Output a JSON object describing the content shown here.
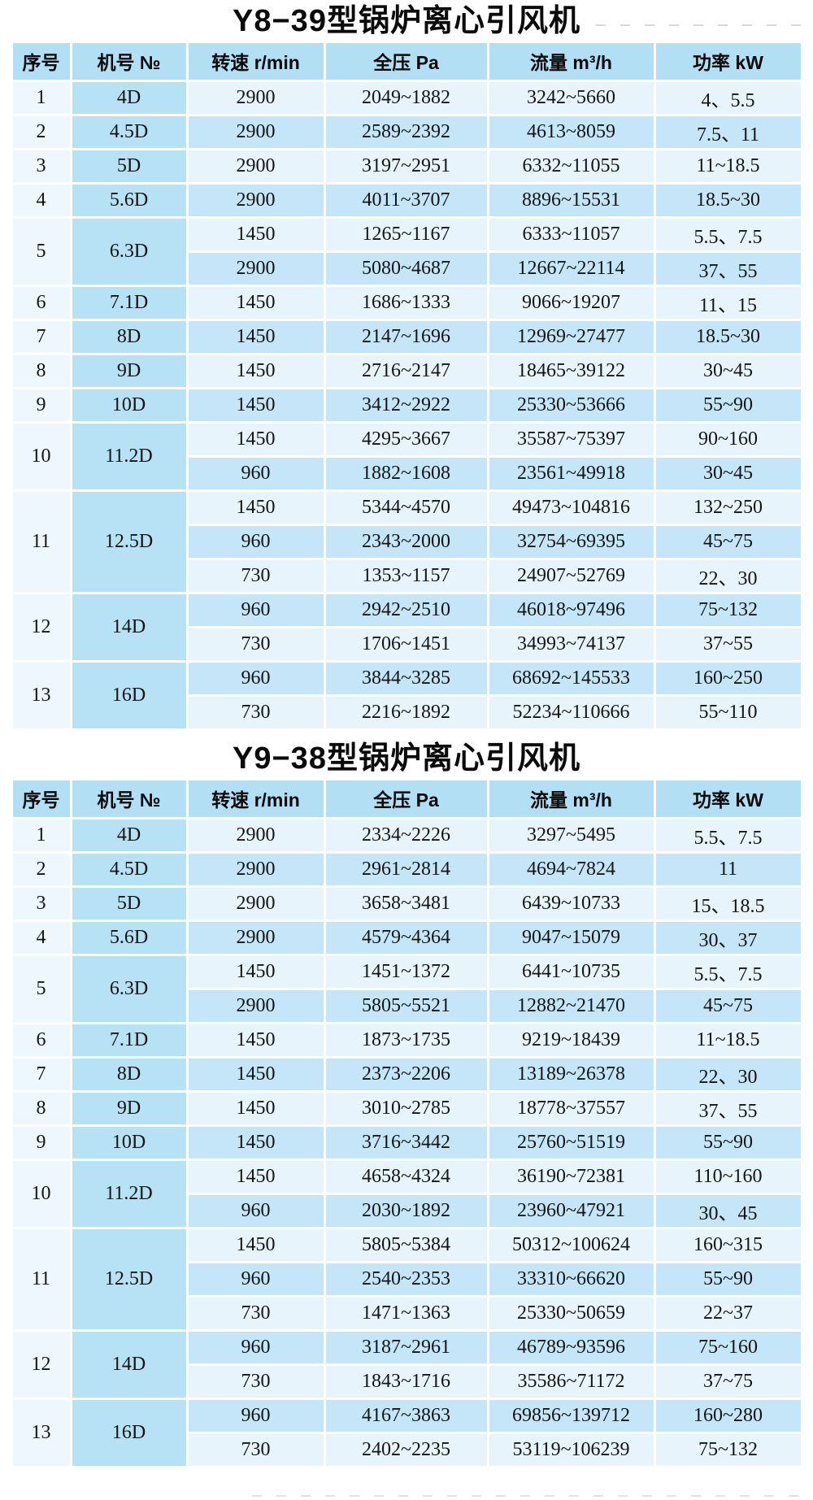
{
  "colors": {
    "header_bg": "#b3dff4",
    "model_column_bg": "#b7e1f5",
    "seq_column_bg": "#edf7fd",
    "row_light_bg": "#e8f4fc",
    "row_medium_bg": "#c4e6f8",
    "page_bg": "#ffffff",
    "text": "#111111"
  },
  "tables": [
    {
      "title": "Y8−39型锅炉离心引风机",
      "headers": [
        "序号",
        "机号 №",
        "转速 r/min",
        "全压 Pa",
        "流量 m³/h",
        "功率 kW"
      ],
      "rows": [
        {
          "seq": "1",
          "model": "4D",
          "subrows": [
            [
              "2900",
              "2049~1882",
              "3242~5660",
              "4、5.5"
            ]
          ]
        },
        {
          "seq": "2",
          "model": "4.5D",
          "subrows": [
            [
              "2900",
              "2589~2392",
              "4613~8059",
              "7.5、11"
            ]
          ]
        },
        {
          "seq": "3",
          "model": "5D",
          "subrows": [
            [
              "2900",
              "3197~2951",
              "6332~11055",
              "11~18.5"
            ]
          ]
        },
        {
          "seq": "4",
          "model": "5.6D",
          "subrows": [
            [
              "2900",
              "4011~3707",
              "8896~15531",
              "18.5~30"
            ]
          ]
        },
        {
          "seq": "5",
          "model": "6.3D",
          "subrows": [
            [
              "1450",
              "1265~1167",
              "6333~11057",
              "5.5、7.5"
            ],
            [
              "2900",
              "5080~4687",
              "12667~22114",
              "37、55"
            ]
          ]
        },
        {
          "seq": "6",
          "model": "7.1D",
          "subrows": [
            [
              "1450",
              "1686~1333",
              "9066~19207",
              "11、15"
            ]
          ]
        },
        {
          "seq": "7",
          "model": "8D",
          "subrows": [
            [
              "1450",
              "2147~1696",
              "12969~27477",
              "18.5~30"
            ]
          ]
        },
        {
          "seq": "8",
          "model": "9D",
          "subrows": [
            [
              "1450",
              "2716~2147",
              "18465~39122",
              "30~45"
            ]
          ]
        },
        {
          "seq": "9",
          "model": "10D",
          "subrows": [
            [
              "1450",
              "3412~2922",
              "25330~53666",
              "55~90"
            ]
          ]
        },
        {
          "seq": "10",
          "model": "11.2D",
          "subrows": [
            [
              "1450",
              "4295~3667",
              "35587~75397",
              "90~160"
            ],
            [
              "960",
              "1882~1608",
              "23561~49918",
              "30~45"
            ]
          ]
        },
        {
          "seq": "11",
          "model": "12.5D",
          "subrows": [
            [
              "1450",
              "5344~4570",
              "49473~104816",
              "132~250"
            ],
            [
              "960",
              "2343~2000",
              "32754~69395",
              "45~75"
            ],
            [
              "730",
              "1353~1157",
              "24907~52769",
              "22、30"
            ]
          ]
        },
        {
          "seq": "12",
          "model": "14D",
          "subrows": [
            [
              "960",
              "2942~2510",
              "46018~97496",
              "75~132"
            ],
            [
              "730",
              "1706~1451",
              "34993~74137",
              "37~55"
            ]
          ]
        },
        {
          "seq": "13",
          "model": "16D",
          "subrows": [
            [
              "960",
              "3844~3285",
              "68692~145533",
              "160~250"
            ],
            [
              "730",
              "2216~1892",
              "52234~110666",
              "55~110"
            ]
          ]
        }
      ]
    },
    {
      "title": "Y9−38型锅炉离心引风机",
      "headers": [
        "序号",
        "机号 №",
        "转速 r/min",
        "全压 Pa",
        "流量 m³/h",
        "功率 kW"
      ],
      "rows": [
        {
          "seq": "1",
          "model": "4D",
          "subrows": [
            [
              "2900",
              "2334~2226",
              "3297~5495",
              "5.5、7.5"
            ]
          ]
        },
        {
          "seq": "2",
          "model": "4.5D",
          "subrows": [
            [
              "2900",
              "2961~2814",
              "4694~7824",
              "11"
            ]
          ]
        },
        {
          "seq": "3",
          "model": "5D",
          "subrows": [
            [
              "2900",
              "3658~3481",
              "6439~10733",
              "15、18.5"
            ]
          ]
        },
        {
          "seq": "4",
          "model": "5.6D",
          "subrows": [
            [
              "2900",
              "4579~4364",
              "9047~15079",
              "30、37"
            ]
          ]
        },
        {
          "seq": "5",
          "model": "6.3D",
          "subrows": [
            [
              "1450",
              "1451~1372",
              "6441~10735",
              "5.5、7.5"
            ],
            [
              "2900",
              "5805~5521",
              "12882~21470",
              "45~75"
            ]
          ]
        },
        {
          "seq": "6",
          "model": "7.1D",
          "subrows": [
            [
              "1450",
              "1873~1735",
              "9219~18439",
              "11~18.5"
            ]
          ]
        },
        {
          "seq": "7",
          "model": "8D",
          "subrows": [
            [
              "1450",
              "2373~2206",
              "13189~26378",
              "22、30"
            ]
          ]
        },
        {
          "seq": "8",
          "model": "9D",
          "subrows": [
            [
              "1450",
              "3010~2785",
              "18778~37557",
              "37、55"
            ]
          ]
        },
        {
          "seq": "9",
          "model": "10D",
          "subrows": [
            [
              "1450",
              "3716~3442",
              "25760~51519",
              "55~90"
            ]
          ]
        },
        {
          "seq": "10",
          "model": "11.2D",
          "subrows": [
            [
              "1450",
              "4658~4324",
              "36190~72381",
              "110~160"
            ],
            [
              "960",
              "2030~1892",
              "23960~47921",
              "30、45"
            ]
          ]
        },
        {
          "seq": "11",
          "model": "12.5D",
          "subrows": [
            [
              "1450",
              "5805~5384",
              "50312~100624",
              "160~315"
            ],
            [
              "960",
              "2540~2353",
              "33310~66620",
              "55~90"
            ],
            [
              "730",
              "1471~1363",
              "25330~50659",
              "22~37"
            ]
          ]
        },
        {
          "seq": "12",
          "model": "14D",
          "subrows": [
            [
              "960",
              "3187~2961",
              "46789~93596",
              "75~160"
            ],
            [
              "730",
              "1843~1716",
              "35586~71172",
              "37~75"
            ]
          ]
        },
        {
          "seq": "13",
          "model": "16D",
          "subrows": [
            [
              "960",
              "4167~3863",
              "69856~139712",
              "160~280"
            ],
            [
              "730",
              "2402~2235",
              "53119~106239",
              "75~132"
            ]
          ]
        }
      ]
    }
  ]
}
